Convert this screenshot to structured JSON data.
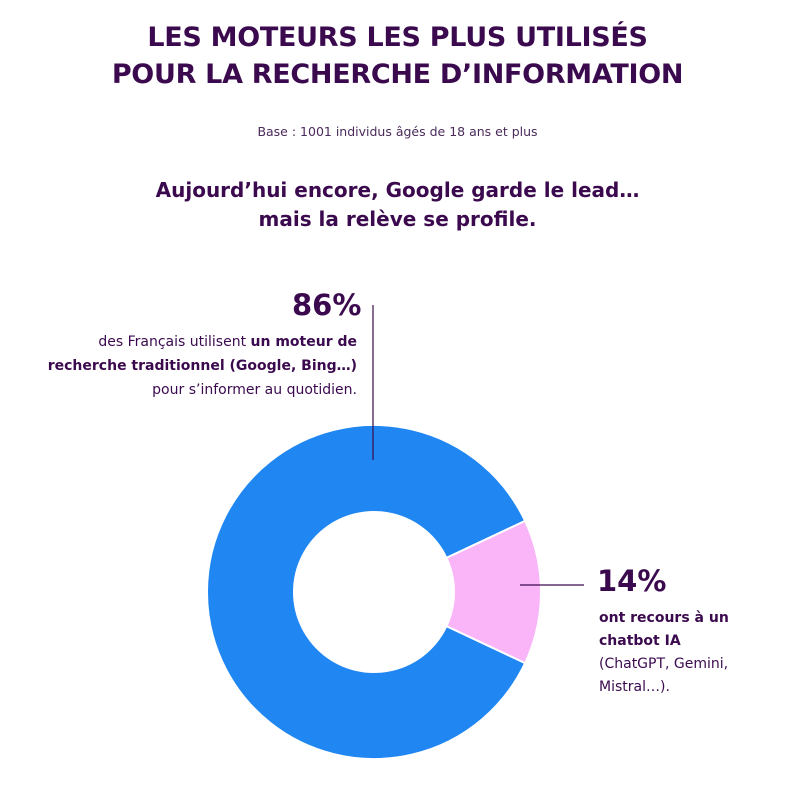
{
  "header": {
    "title_line1": "LES MOTEURS LES PLUS UTILISÉS",
    "title_line2": "POUR LA RECHERCHE D’INFORMATION",
    "base": "Base : 1001 individus âgés de 18 ans et plus",
    "subtitle_line1": "Aujourd’hui encore, Google garde le lead…",
    "subtitle_line2": "mais la relève se profile."
  },
  "annotations": {
    "google": {
      "percent": "86%",
      "text_pre": "des Français utilisent ",
      "text_bold": "un moteur de recherche traditionnel (Google, Bing…)",
      "text_post": " pour s’informer au quotidien."
    },
    "ai": {
      "percent": "14%",
      "text_bold": "ont recours à un chatbot IA",
      "text_normal": "(ChatGPT, Gemini, Mistral…)."
    }
  },
  "colors": {
    "title": "#3b0a4e",
    "google": "#1f86f2",
    "ai": "#f9b5f8",
    "leader": "#3b0a4e"
  },
  "chart_data": {
    "type": "pie",
    "donut": true,
    "title": "LES MOTEURS LES PLUS UTILISÉS POUR LA RECHERCHE D’INFORMATION",
    "categories": [
      "un moteur de recherche traditionnel (Google, Bing…)",
      "chatbot IA (ChatGPT, Gemini, Mistral…)"
    ],
    "values": [
      86,
      14
    ],
    "unit": "%",
    "colors": [
      "#1f86f2",
      "#f9b5f8"
    ],
    "legend": "none"
  }
}
